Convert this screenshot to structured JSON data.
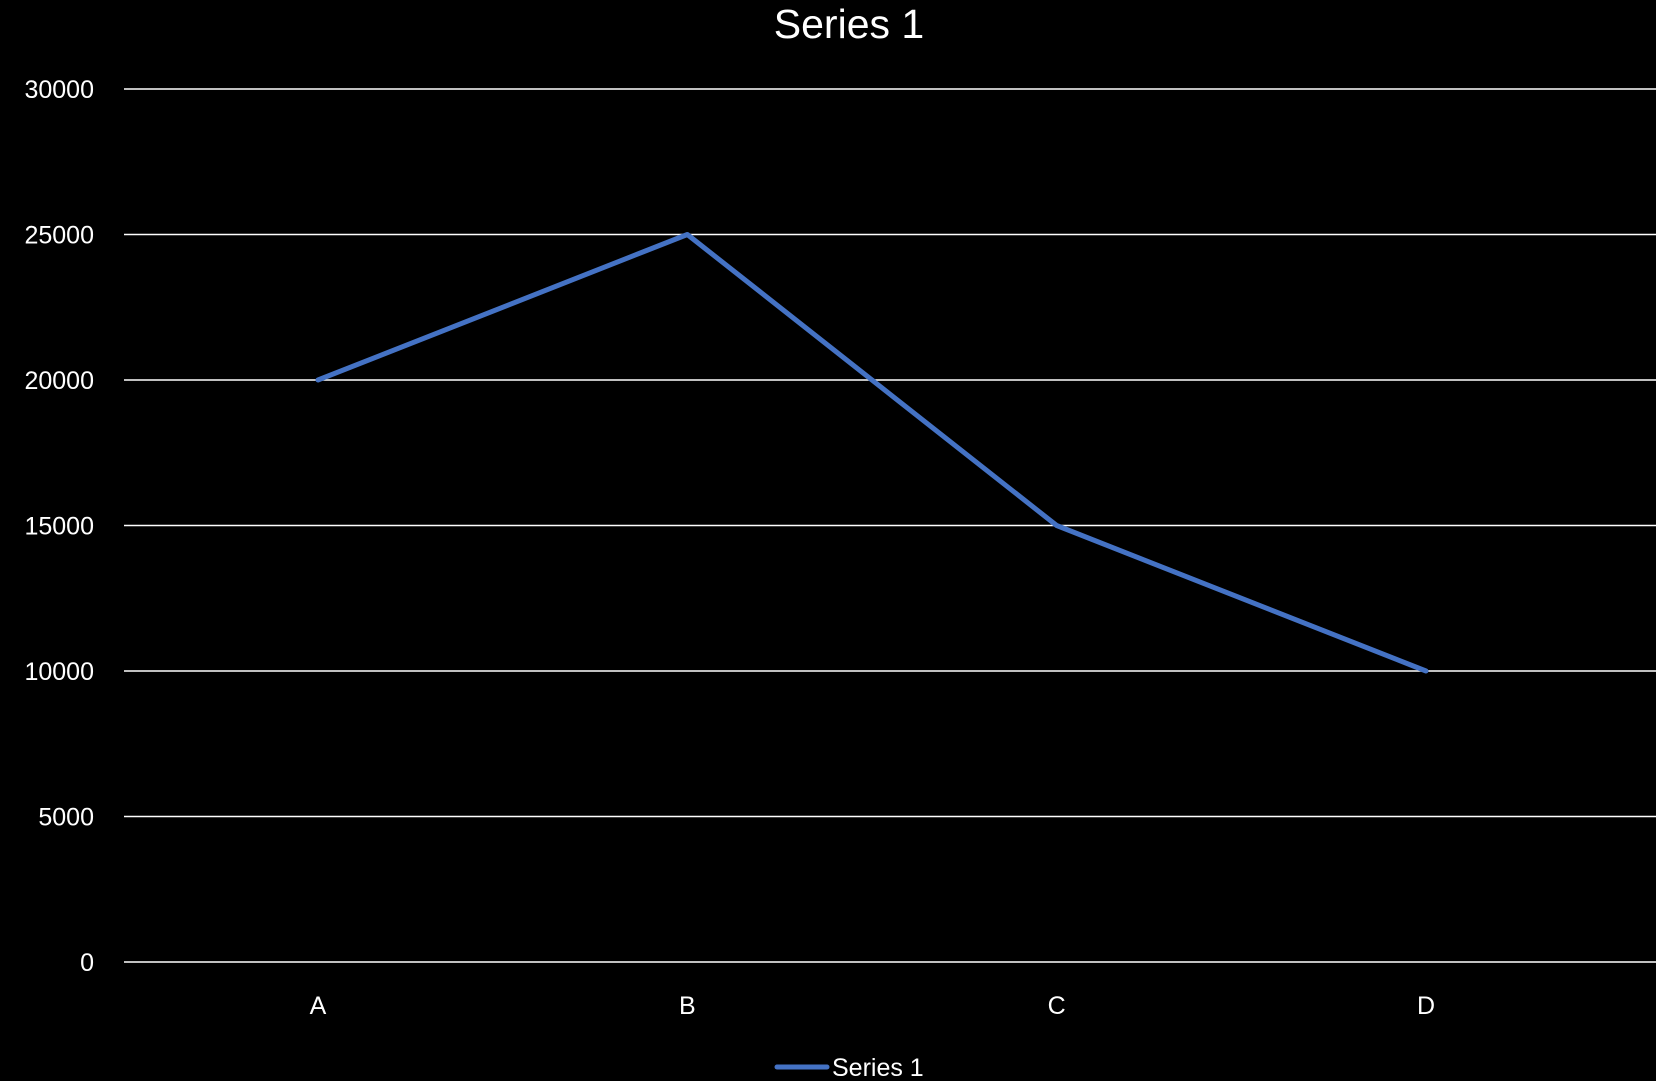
{
  "chart_data": {
    "type": "line",
    "title": "Series 1",
    "xlabel": "",
    "ylabel": "",
    "categories": [
      "A",
      "B",
      "C",
      "D"
    ],
    "series": [
      {
        "name": "Series 1",
        "values": [
          20000,
          25000,
          15000,
          10000
        ],
        "color": "#4472C4"
      }
    ],
    "ylim": [
      0,
      30000
    ],
    "yticks": [
      0,
      5000,
      10000,
      15000,
      20000,
      25000,
      30000
    ],
    "grid": true,
    "legend_position": "bottom"
  },
  "colors": {
    "background": "#000000",
    "text": "#ffffff",
    "gridline": "#ffffff",
    "series_line": "#4472C4"
  }
}
